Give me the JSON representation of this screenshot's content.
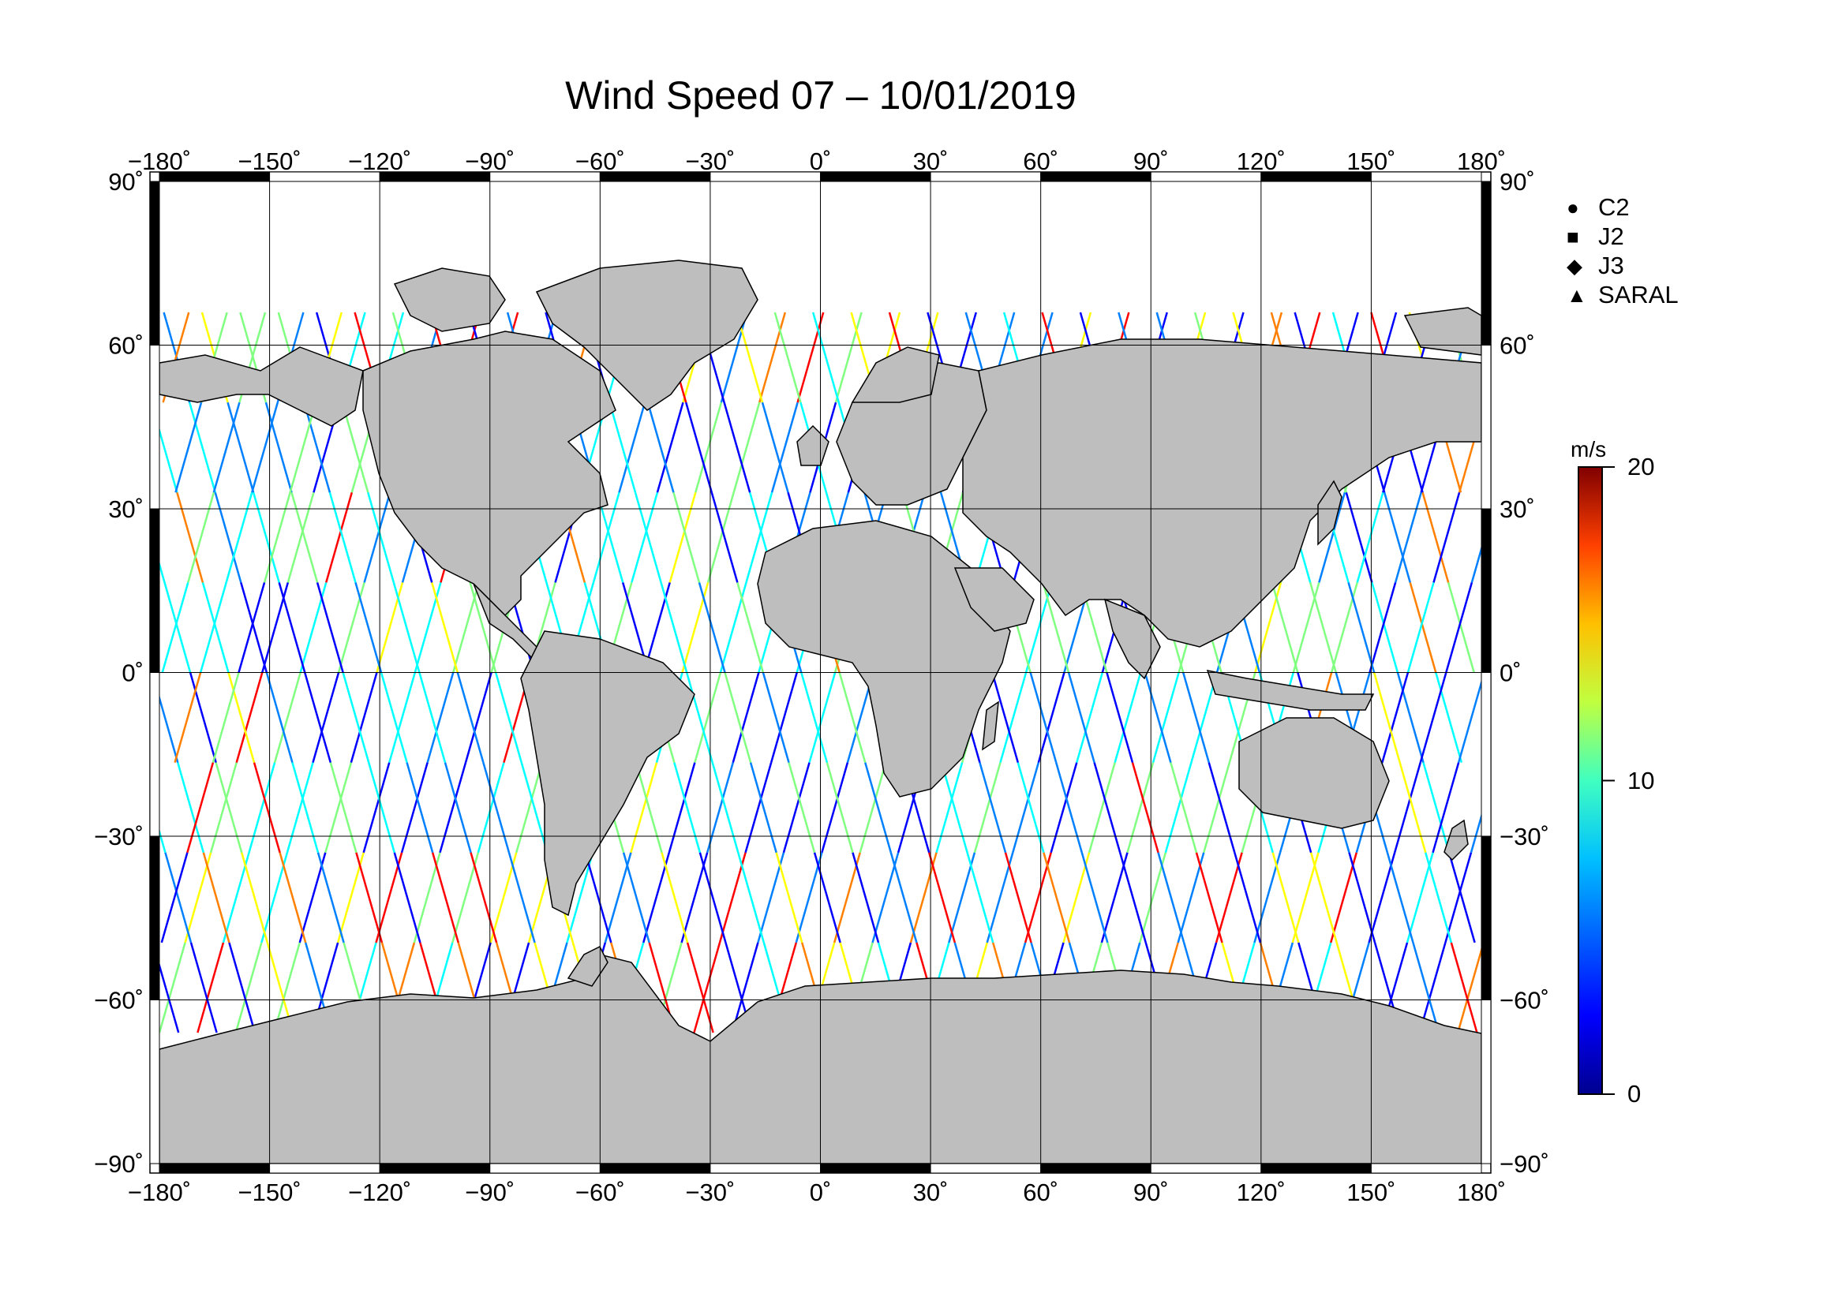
{
  "title": "Wind Speed 07 – 10/01/2019",
  "axes": {
    "lon_ticks": [
      "−180˚",
      "−150˚",
      "−120˚",
      "−90˚",
      "−60˚",
      "−30˚",
      "0˚",
      "30˚",
      "60˚",
      "90˚",
      "120˚",
      "150˚",
      "180˚"
    ],
    "lon_values": [
      -180,
      -150,
      -120,
      -90,
      -60,
      -30,
      0,
      30,
      60,
      90,
      120,
      150,
      180
    ],
    "lat_ticks": [
      "90˚",
      "60˚",
      "30˚",
      "0˚",
      "−30˚",
      "−60˚",
      "−90˚"
    ],
    "lat_values": [
      90,
      60,
      30,
      0,
      -30,
      -60,
      -90
    ]
  },
  "legend": {
    "items": [
      {
        "label": "C2",
        "icon": "circle-icon",
        "symbol": "●"
      },
      {
        "label": "J2",
        "icon": "square-icon",
        "symbol": "■"
      },
      {
        "label": "J3",
        "icon": "diamond-icon",
        "symbol": "◆"
      },
      {
        "label": "SARAL",
        "icon": "triangle-icon",
        "symbol": "▲"
      }
    ]
  },
  "colorbar": {
    "unit": "m/s",
    "min": 0,
    "max": 20,
    "tick_labels": [
      "20",
      "10",
      "0"
    ],
    "tick_values": [
      20,
      10,
      0
    ]
  },
  "colors": {
    "land": "#bebebe",
    "coast": "#000000",
    "ocean": "#ffffff",
    "colormap": [
      "#00008f",
      "#0000ff",
      "#0080ff",
      "#00ffff",
      "#80ff80",
      "#ffff00",
      "#ff8000",
      "#ff0000",
      "#800000"
    ]
  }
}
